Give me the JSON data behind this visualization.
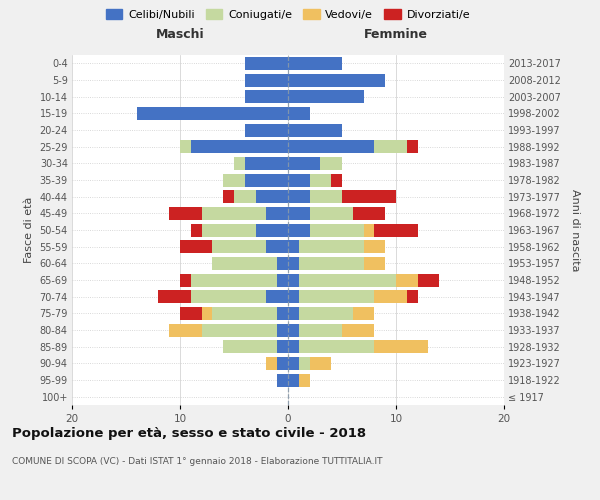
{
  "age_groups": [
    "100+",
    "95-99",
    "90-94",
    "85-89",
    "80-84",
    "75-79",
    "70-74",
    "65-69",
    "60-64",
    "55-59",
    "50-54",
    "45-49",
    "40-44",
    "35-39",
    "30-34",
    "25-29",
    "20-24",
    "15-19",
    "10-14",
    "5-9",
    "0-4"
  ],
  "birth_years": [
    "≤ 1917",
    "1918-1922",
    "1923-1927",
    "1928-1932",
    "1933-1937",
    "1938-1942",
    "1943-1947",
    "1948-1952",
    "1953-1957",
    "1958-1962",
    "1963-1967",
    "1968-1972",
    "1973-1977",
    "1978-1982",
    "1983-1987",
    "1988-1992",
    "1993-1997",
    "1998-2002",
    "2003-2007",
    "2008-2012",
    "2013-2017"
  ],
  "colors": {
    "celibi": "#4472C4",
    "coniugati": "#C5D9A0",
    "vedovi": "#F0C060",
    "divorziati": "#CC2222"
  },
  "maschi": {
    "celibi": [
      0,
      1,
      1,
      1,
      1,
      1,
      2,
      1,
      1,
      2,
      3,
      2,
      3,
      4,
      4,
      9,
      4,
      14,
      4,
      4,
      4
    ],
    "coniugati": [
      0,
      0,
      0,
      5,
      7,
      6,
      7,
      8,
      6,
      5,
      5,
      6,
      2,
      2,
      1,
      1,
      0,
      0,
      0,
      0,
      0
    ],
    "vedovi": [
      0,
      0,
      1,
      0,
      3,
      1,
      0,
      0,
      0,
      0,
      0,
      0,
      0,
      0,
      0,
      0,
      0,
      0,
      0,
      0,
      0
    ],
    "divorziati": [
      0,
      0,
      0,
      0,
      0,
      2,
      3,
      1,
      0,
      3,
      1,
      3,
      1,
      0,
      0,
      0,
      0,
      0,
      0,
      0,
      0
    ]
  },
  "femmine": {
    "celibi": [
      0,
      1,
      1,
      1,
      1,
      1,
      1,
      1,
      1,
      1,
      2,
      2,
      2,
      2,
      3,
      8,
      5,
      2,
      7,
      9,
      5
    ],
    "coniugati": [
      0,
      0,
      1,
      7,
      4,
      5,
      7,
      9,
      6,
      6,
      5,
      4,
      3,
      2,
      2,
      3,
      0,
      0,
      0,
      0,
      0
    ],
    "vedovi": [
      0,
      1,
      2,
      5,
      3,
      2,
      3,
      2,
      2,
      2,
      1,
      0,
      0,
      0,
      0,
      0,
      0,
      0,
      0,
      0,
      0
    ],
    "divorziati": [
      0,
      0,
      0,
      0,
      0,
      0,
      1,
      2,
      0,
      0,
      4,
      3,
      5,
      1,
      0,
      1,
      0,
      0,
      0,
      0,
      0
    ]
  },
  "xlim": 20,
  "title": "Popolazione per età, sesso e stato civile - 2018",
  "subtitle": "COMUNE DI SCOPA (VC) - Dati ISTAT 1° gennaio 2018 - Elaborazione TUTTITALIA.IT",
  "xlabel_left": "Maschi",
  "xlabel_right": "Femmine",
  "ylabel": "Fasce di età",
  "ylabel_right": "Anni di nascita",
  "legend_labels": [
    "Celibi/Nubili",
    "Coniugati/e",
    "Vedovi/e",
    "Divorziati/e"
  ],
  "bg_color": "#f0f0f0",
  "plot_bg": "#ffffff"
}
